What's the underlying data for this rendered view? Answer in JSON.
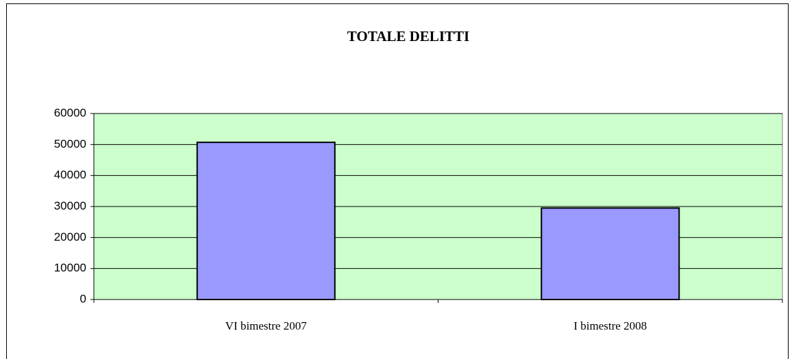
{
  "chart_data": {
    "type": "bar",
    "title": "TOTALE DELITTI",
    "categories": [
      "VI bimestre 2007",
      "I bimestre 2008"
    ],
    "values": [
      50700,
      29500
    ],
    "color": "#9999ff",
    "ylim": [
      0,
      60000
    ],
    "yticks": [
      0,
      10000,
      20000,
      30000,
      40000,
      50000,
      60000
    ],
    "grid": true
  }
}
